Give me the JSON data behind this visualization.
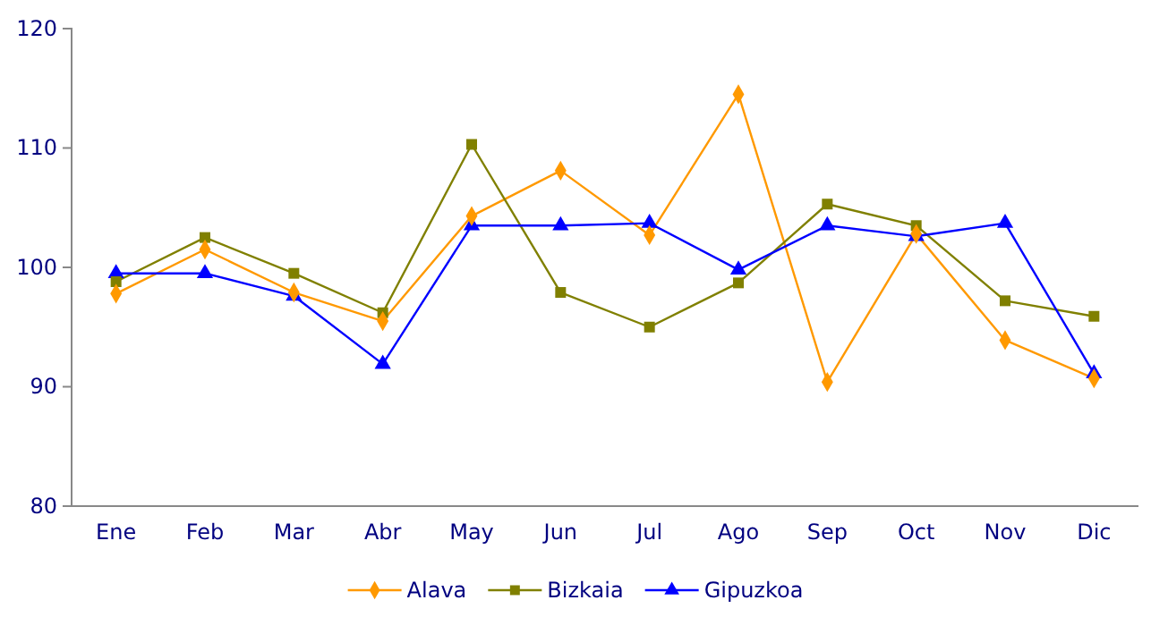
{
  "chart_data": {
    "type": "line",
    "categories": [
      "Ene",
      "Feb",
      "Mar",
      "Abr",
      "May",
      "Jun",
      "Jul",
      "Ago",
      "Sep",
      "Oct",
      "Nov",
      "Dic"
    ],
    "series": [
      {
        "name": "Alava",
        "color": "#ff9900",
        "marker": "diamond",
        "values": [
          97.8,
          101.5,
          97.9,
          95.5,
          104.3,
          108.1,
          102.7,
          114.5,
          90.4,
          102.8,
          93.9,
          90.7
        ]
      },
      {
        "name": "Bizkaia",
        "color": "#808000",
        "marker": "square",
        "values": [
          98.8,
          102.5,
          99.5,
          96.2,
          110.3,
          97.9,
          95.0,
          98.7,
          105.3,
          103.5,
          97.2,
          95.9
        ]
      },
      {
        "name": "Gipuzkoa",
        "color": "#0000ff",
        "marker": "triangle",
        "values": [
          99.5,
          99.5,
          97.6,
          91.9,
          103.5,
          103.5,
          103.7,
          99.8,
          103.5,
          102.6,
          103.7,
          91.1
        ]
      }
    ],
    "ylim": [
      80,
      120
    ],
    "yticks": [
      80,
      90,
      100,
      110,
      120
    ],
    "grid": false,
    "legend": "bottom",
    "line_style": "solid"
  }
}
